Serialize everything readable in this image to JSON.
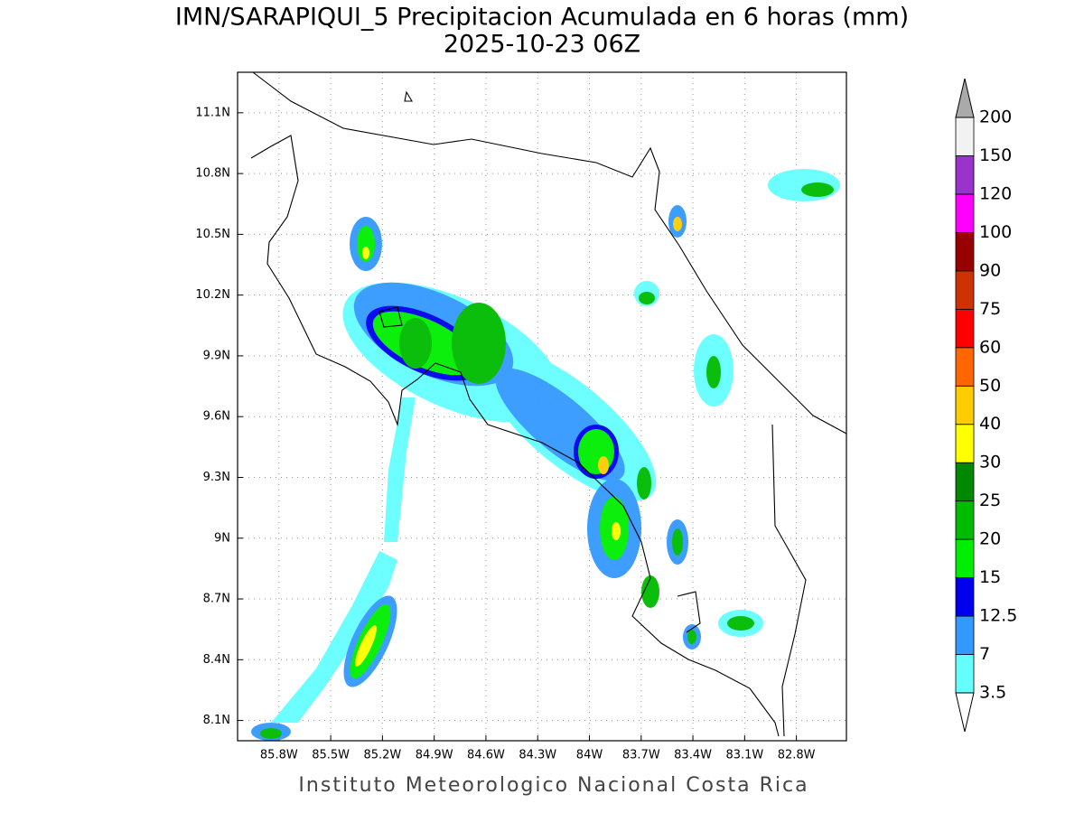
{
  "title": "IMN/SARAPIQUI_5 Precipitacion Acumulada en 6 horas (mm)",
  "subtitle": "2025-10-23 06Z",
  "footer": "Instituto Meteorologico Nacional Costa Rica",
  "map": {
    "xlim": [
      -86.04,
      -82.51
    ],
    "ylim": [
      8.0,
      11.3
    ],
    "xticks": [
      {
        "value": -85.8,
        "label": "85.8W"
      },
      {
        "value": -85.5,
        "label": "85.5W"
      },
      {
        "value": -85.2,
        "label": "85.2W"
      },
      {
        "value": -84.9,
        "label": "84.9W"
      },
      {
        "value": -84.6,
        "label": "84.6W"
      },
      {
        "value": -84.3,
        "label": "84.3W"
      },
      {
        "value": -84.0,
        "label": "84W"
      },
      {
        "value": -83.7,
        "label": "83.7W"
      },
      {
        "value": -83.4,
        "label": "83.4W"
      },
      {
        "value": -83.1,
        "label": "83.1W"
      },
      {
        "value": -82.8,
        "label": "82.8W"
      }
    ],
    "yticks": [
      {
        "value": 8.1,
        "label": "8.1N"
      },
      {
        "value": 8.4,
        "label": "8.4N"
      },
      {
        "value": 8.7,
        "label": "8.7N"
      },
      {
        "value": 9.0,
        "label": "9N"
      },
      {
        "value": 9.3,
        "label": "9.3N"
      },
      {
        "value": 9.6,
        "label": "9.6N"
      },
      {
        "value": 9.9,
        "label": "9.9N"
      },
      {
        "value": 10.2,
        "label": "10.2N"
      },
      {
        "value": 10.5,
        "label": "10.5N"
      },
      {
        "value": 10.8,
        "label": "10.8N"
      },
      {
        "value": 11.1,
        "label": "11.1N"
      }
    ],
    "grid": true
  },
  "colorbar": {
    "levels": [
      3.5,
      7,
      12.5,
      15,
      20,
      25,
      30,
      40,
      50,
      60,
      75,
      90,
      100,
      120,
      150,
      200
    ],
    "colors": [
      "#66ffff",
      "#3399ff",
      "#0000ee",
      "#00ee00",
      "#00bb00",
      "#008800",
      "#ffff00",
      "#ffcc00",
      "#ff6600",
      "#ff0000",
      "#cc3300",
      "#990000",
      "#ff00ff",
      "#9933cc",
      "#f2f2f2"
    ],
    "under_color": "#ffffff",
    "over_color": "#aaaaaa"
  }
}
